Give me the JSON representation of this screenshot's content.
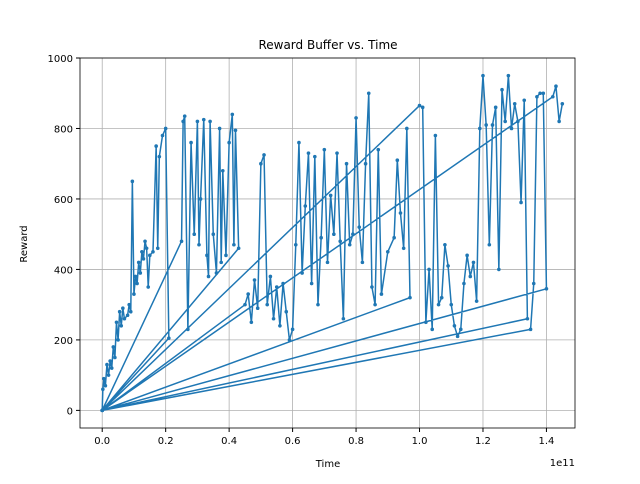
{
  "chart_data": {
    "type": "line",
    "title": "Reward Buffer vs. Time",
    "xlabel": "Time",
    "ylabel": "Reward",
    "x_offset_label": "1e11",
    "x": [
      0,
      0.002,
      0.005,
      0.01,
      0.015,
      0.02,
      0.025,
      0.03,
      0.035,
      0.04,
      0.045,
      0.05,
      0.055,
      0.06,
      0.065,
      0.07,
      0.08,
      0.085,
      0.09,
      0.095,
      0.1,
      0.105,
      0.11,
      0.115,
      0.12,
      0.125,
      0.13,
      0.135,
      0.14,
      0.145,
      0.15,
      0.16,
      0.17,
      0.175,
      0.18,
      0.19,
      0.2,
      0.21,
      0,
      0.25,
      0.255,
      0.26,
      0.27,
      0.28,
      0.29,
      0.3,
      0.305,
      0.31,
      0.32,
      0.33,
      0.335,
      0.34,
      0.35,
      0.36,
      0.37,
      0.375,
      0.38,
      0.39,
      0.4,
      0.41,
      0.415,
      0.42,
      0.43,
      0,
      0.45,
      0.46,
      0.47,
      0.48,
      0.49,
      0.5,
      0.51,
      0.52,
      0.53,
      0.54,
      0.55,
      0.56,
      0.57,
      0.58,
      0.59,
      0.6,
      0.61,
      0.62,
      0.63,
      0.64,
      0.65,
      0.66,
      0.67,
      0.68,
      0.69,
      0.7,
      0.71,
      0.72,
      0.73,
      0.74,
      0.75,
      0.76,
      0.77,
      0.78,
      0.79,
      0.8,
      0.81,
      0.82,
      0.83,
      0.84,
      0.85,
      0.86,
      0.87,
      0.88,
      0.9,
      0.92,
      0.93,
      0.94,
      0.95,
      0.96,
      0.97,
      0,
      1.0,
      1.01,
      1.02,
      1.03,
      1.04,
      1.05,
      1.06,
      1.07,
      1.08,
      1.09,
      1.1,
      1.11,
      1.12,
      1.13,
      1.14,
      1.15,
      1.16,
      1.17,
      1.18,
      1.19,
      1.2,
      1.21,
      1.22,
      1.23,
      1.24,
      1.25,
      1.26,
      1.27,
      1.28,
      1.29,
      1.3,
      1.31,
      1.32,
      1.33,
      1.34,
      0,
      1.35,
      1.36,
      1.37,
      1.38,
      1.39,
      1.4,
      0,
      1.42,
      1.43,
      1.44,
      1.45
    ],
    "series": [
      {
        "color": "#1f77b4",
        "values": [
          0,
          60,
          90,
          70,
          130,
          100,
          140,
          120,
          180,
          150,
          250,
          200,
          280,
          240,
          290,
          260,
          270,
          300,
          280,
          650,
          330,
          380,
          360,
          420,
          390,
          450,
          430,
          480,
          460,
          350,
          440,
          450,
          750,
          460,
          720,
          780,
          800,
          205,
          0,
          480,
          820,
          835,
          230,
          760,
          500,
          820,
          470,
          600,
          825,
          440,
          380,
          820,
          500,
          390,
          800,
          420,
          680,
          440,
          760,
          840,
          470,
          795,
          460,
          0,
          300,
          330,
          250,
          370,
          290,
          700,
          725,
          300,
          380,
          260,
          350,
          240,
          360,
          280,
          200,
          230,
          470,
          760,
          390,
          580,
          730,
          360,
          720,
          300,
          490,
          740,
          420,
          610,
          500,
          730,
          480,
          260,
          700,
          470,
          500,
          830,
          520,
          420,
          700,
          900,
          350,
          300,
          740,
          330,
          450,
          490,
          710,
          560,
          460,
          800,
          320,
          0,
          865,
          860,
          250,
          400,
          230,
          780,
          300,
          320,
          470,
          410,
          300,
          240,
          210,
          230,
          360,
          440,
          380,
          420,
          310,
          800,
          950,
          810,
          470,
          810,
          860,
          400,
          910,
          820,
          950,
          800,
          870,
          820,
          590,
          880,
          260,
          0,
          230,
          360,
          890,
          900,
          900,
          345,
          0,
          890,
          920,
          820,
          870
        ]
      }
    ],
    "xlim": [
      -0.07,
      1.49
    ],
    "ylim": [
      -50,
      1000
    ],
    "xticks": [
      {
        "value": 0,
        "label": "0.0"
      },
      0.2,
      0.4,
      0.6,
      0.8,
      {
        "value": 1,
        "label": "1.0"
      },
      1.2,
      1.4
    ],
    "yticks": [
      0,
      200,
      400,
      600,
      800,
      1000
    ],
    "grid": true
  }
}
